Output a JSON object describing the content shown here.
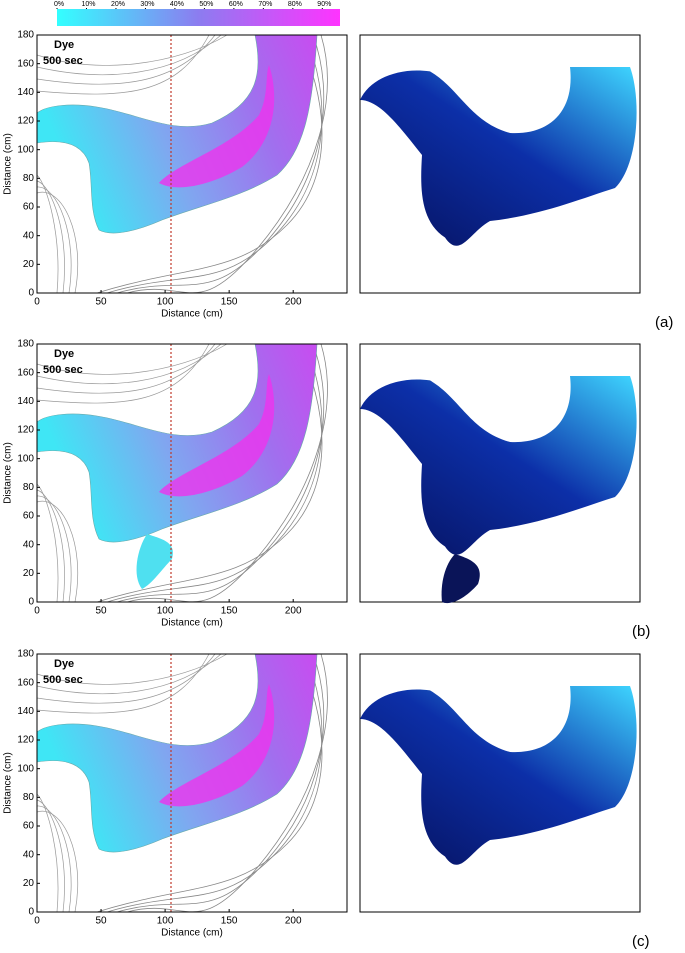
{
  "colorbar": {
    "lim": [
      0,
      96
    ],
    "ticks": [
      {
        "value": 0,
        "label": "0%"
      },
      {
        "value": 10,
        "label": "10%"
      },
      {
        "value": 20,
        "label": "20%"
      },
      {
        "value": 30,
        "label": "30%"
      },
      {
        "value": 40,
        "label": "40%"
      },
      {
        "value": 50,
        "label": "50%"
      },
      {
        "value": 60,
        "label": "60%"
      },
      {
        "value": 70,
        "label": "70%"
      },
      {
        "value": 80,
        "label": "80%"
      },
      {
        "value": 90,
        "label": "90%"
      }
    ]
  },
  "panels": [
    {
      "label": "(a)",
      "annotation": [
        "Dye",
        "500 sec"
      ],
      "xlabel": "Distance (cm)",
      "ylabel": "Distance (cm)",
      "xlim": [
        0,
        242
      ],
      "ylim": [
        0,
        180
      ],
      "xticks": [
        0,
        50,
        100,
        150,
        200
      ],
      "yticks": [
        0,
        20,
        40,
        60,
        80,
        100,
        120,
        140,
        160,
        180
      ]
    },
    {
      "label": "(b)",
      "annotation": [
        "Dye",
        "500 sec"
      ],
      "xlabel": "Distance (cm)",
      "ylabel": "Distance (cm)",
      "xlim": [
        0,
        242
      ],
      "ylim": [
        0,
        180
      ],
      "xticks": [
        0,
        50,
        100,
        150,
        200
      ],
      "yticks": [
        0,
        20,
        40,
        60,
        80,
        100,
        120,
        140,
        160,
        180
      ]
    },
    {
      "label": "(c)",
      "annotation": [
        "Dye",
        "500 sec"
      ],
      "xlabel": "Distance (cm)",
      "ylabel": "Distance (cm)",
      "xlim": [
        0,
        242
      ],
      "ylim": [
        0,
        180
      ],
      "xticks": [
        0,
        50,
        100,
        150,
        200
      ],
      "yticks": [
        0,
        20,
        40,
        60,
        80,
        100,
        120,
        140,
        160,
        180
      ]
    }
  ]
}
